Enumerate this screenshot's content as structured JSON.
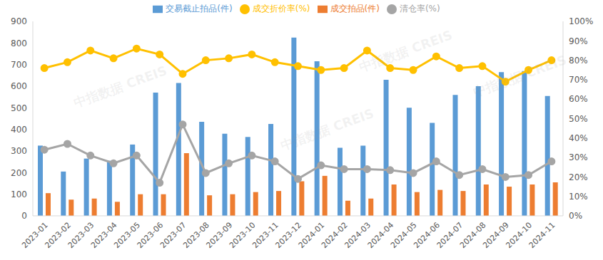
{
  "chart_data": {
    "type": "bar",
    "watermark": "中指数据 CREIS",
    "categories": [
      "2023-01",
      "2023-02",
      "2023-03",
      "2023-04",
      "2023-05",
      "2023-06",
      "2023-07",
      "2023-08",
      "2023-09",
      "2023-10",
      "2023-11",
      "2023-12",
      "2024-01",
      "2024-02",
      "2024-03",
      "2024-04",
      "2024-05",
      "2024-06",
      "2024-07",
      "2024-08",
      "2024-09",
      "2024-10",
      "2024-11"
    ],
    "series": [
      {
        "name": "交易截止拍品(件)",
        "type": "bar",
        "color": "#5B9BD5",
        "values": [
          325,
          205,
          265,
          255,
          330,
          570,
          615,
          435,
          380,
          365,
          425,
          825,
          715,
          315,
          325,
          630,
          500,
          430,
          560,
          600,
          665,
          670,
          555
        ]
      },
      {
        "name": "成交拍品(件)",
        "type": "bar",
        "color": "#ED7D31",
        "values": [
          105,
          75,
          80,
          65,
          100,
          100,
          290,
          95,
          100,
          110,
          115,
          160,
          185,
          70,
          80,
          145,
          110,
          120,
          115,
          145,
          135,
          145,
          155
        ]
      },
      {
        "name": "清仓率(%)",
        "type": "line",
        "axis": "y2",
        "marker": "circle",
        "color": "#A5A5A5",
        "values": [
          34,
          37,
          31,
          27,
          31,
          17,
          47,
          22,
          27,
          31,
          28,
          19,
          26,
          24,
          24,
          23.5,
          22,
          28,
          21,
          24,
          20,
          21,
          28
        ]
      },
      {
        "name": "成交折价率(%)",
        "type": "line",
        "axis": "y2",
        "marker": "circle",
        "color": "#FFC000",
        "values": [
          76,
          79,
          85,
          81,
          86,
          83,
          73,
          80,
          81,
          83,
          79,
          77,
          75,
          76,
          85,
          76,
          75,
          82,
          76,
          77,
          69,
          75,
          80
        ]
      }
    ],
    "ylim": [
      0,
      900
    ],
    "yticks": [
      0,
      100,
      200,
      300,
      400,
      500,
      600,
      700,
      800,
      900
    ],
    "y2lim": [
      0,
      100
    ],
    "y2ticks": [
      {
        "value": 0,
        "label": "0%"
      },
      {
        "value": 10,
        "label": "10%"
      },
      {
        "value": 20,
        "label": "20%"
      },
      {
        "value": 30,
        "label": "30%"
      },
      {
        "value": 40,
        "label": "40%"
      },
      {
        "value": 50,
        "label": "50%"
      },
      {
        "value": 60,
        "label": "60%"
      },
      {
        "value": 70,
        "label": "70%"
      },
      {
        "value": 80,
        "label": "80%"
      },
      {
        "value": 90,
        "label": "90%"
      },
      {
        "value": 100,
        "label": "100%"
      }
    ],
    "grid": false,
    "legend": "top"
  }
}
